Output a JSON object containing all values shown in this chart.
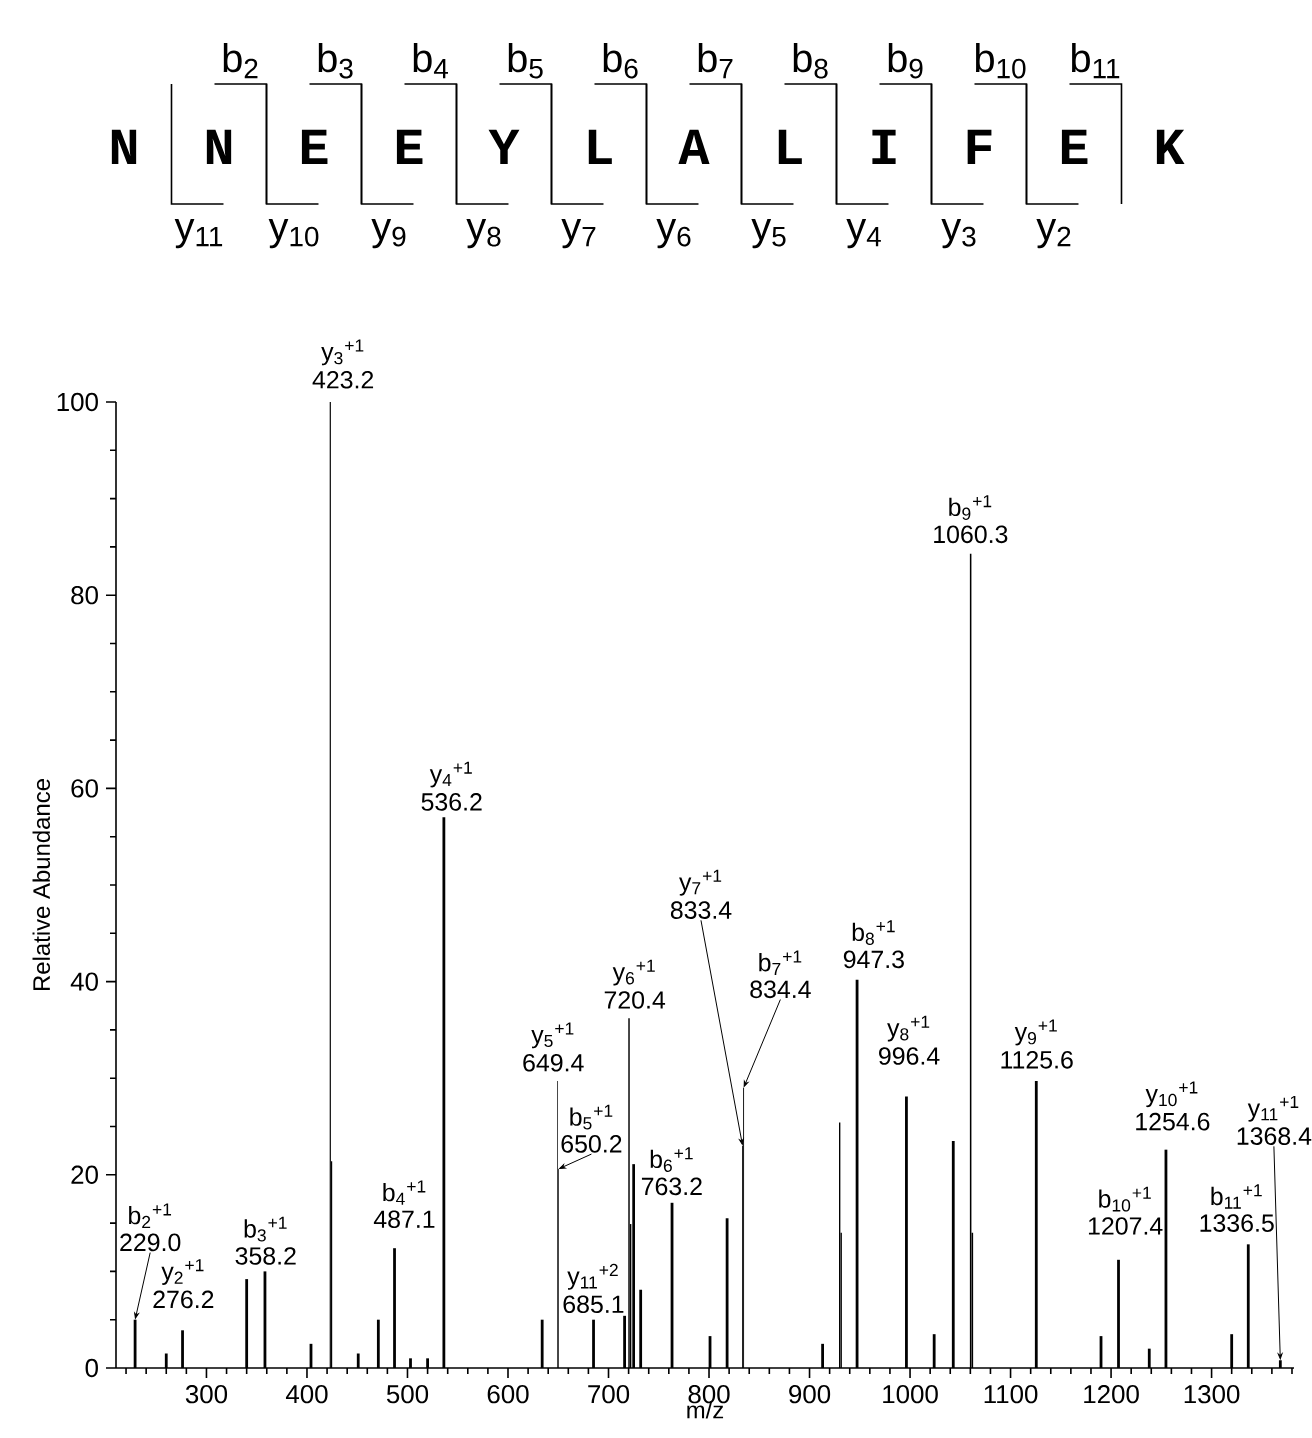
{
  "chart_data": {
    "type": "bar",
    "xlabel": "m/z",
    "ylabel": "Relative Abundance",
    "x": [
      229.0,
      260,
      276.2,
      340,
      358.2,
      404,
      423.2,
      424.5,
      451,
      471,
      487.1,
      503,
      520,
      536.2,
      634,
      649.4,
      650.2,
      685.1,
      716,
      720.4,
      722,
      725,
      732,
      763.2,
      801,
      818,
      833.4,
      834.4,
      913,
      930,
      931.5,
      947.3,
      996.4,
      1024,
      1043,
      1060.3,
      1062,
      1125.6,
      1190,
      1207.4,
      1238,
      1254.6,
      1320,
      1336.5,
      1368.4
    ],
    "values": [
      5.0,
      1.5,
      3.9,
      9.2,
      10.0,
      2.5,
      100,
      21.4,
      1.5,
      5.0,
      12.4,
      1.0,
      1.0,
      57,
      5.0,
      29.7,
      20.6,
      5.0,
      5.4,
      36.2,
      14.9,
      21.1,
      8.1,
      17.1,
      3.3,
      15.5,
      23,
      29,
      2.5,
      25.4,
      14,
      40.2,
      28.1,
      3.5,
      23.5,
      84.3,
      14,
      29.7,
      3.3,
      11.2,
      2,
      22.6,
      3.5,
      12.8,
      0.8
    ],
    "color": "#000000",
    "xlim": [
      210,
      1382
    ],
    "ylim": [
      0,
      100
    ],
    "xticks": [
      {
        "value": 220,
        "label": null
      },
      {
        "value": 240,
        "label": null
      },
      {
        "value": 260,
        "label": null
      },
      {
        "value": 280,
        "label": null
      },
      300,
      {
        "value": 320,
        "label": null
      },
      {
        "value": 340,
        "label": null
      },
      {
        "value": 360,
        "label": null
      },
      {
        "value": 380,
        "label": null
      },
      400,
      {
        "value": 420,
        "label": null
      },
      {
        "value": 440,
        "label": null
      },
      {
        "value": 460,
        "label": null
      },
      {
        "value": 480,
        "label": null
      },
      500,
      {
        "value": 520,
        "label": null
      },
      {
        "value": 540,
        "label": null
      },
      {
        "value": 560,
        "label": null
      },
      {
        "value": 580,
        "label": null
      },
      600,
      {
        "value": 620,
        "label": null
      },
      {
        "value": 640,
        "label": null
      },
      {
        "value": 660,
        "label": null
      },
      {
        "value": 680,
        "label": null
      },
      700,
      {
        "value": 720,
        "label": null
      },
      {
        "value": 740,
        "label": null
      },
      {
        "value": 760,
        "label": null
      },
      {
        "value": 780,
        "label": null
      },
      800,
      {
        "value": 820,
        "label": null
      },
      {
        "value": 840,
        "label": null
      },
      {
        "value": 860,
        "label": null
      },
      {
        "value": 880,
        "label": null
      },
      900,
      {
        "value": 920,
        "label": null
      },
      {
        "value": 940,
        "label": null
      },
      {
        "value": 960,
        "label": null
      },
      {
        "value": 980,
        "label": null
      },
      1000,
      {
        "value": 1020,
        "label": null
      },
      {
        "value": 1040,
        "label": null
      },
      {
        "value": 1060,
        "label": null
      },
      {
        "value": 1080,
        "label": null
      },
      1100,
      {
        "value": 1120,
        "label": null
      },
      {
        "value": 1140,
        "label": null
      },
      {
        "value": 1160,
        "label": null
      },
      {
        "value": 1180,
        "label": null
      },
      1200,
      {
        "value": 1220,
        "label": null
      },
      {
        "value": 1240,
        "label": null
      },
      {
        "value": 1260,
        "label": null
      },
      {
        "value": 1280,
        "label": null
      },
      1300,
      {
        "value": 1320,
        "label": null
      },
      {
        "value": 1340,
        "label": null
      },
      {
        "value": 1360,
        "label": null
      },
      {
        "value": 1380,
        "label": null
      }
    ],
    "yticks": [
      0,
      {
        "value": 5,
        "label": null
      },
      {
        "value": 10,
        "label": null
      },
      {
        "value": 15,
        "label": null
      },
      20,
      {
        "value": 25,
        "label": null
      },
      {
        "value": 30,
        "label": null
      },
      {
        "value": 35,
        "label": null
      },
      40,
      {
        "value": 45,
        "label": null
      },
      {
        "value": 50,
        "label": null
      },
      {
        "value": 55,
        "label": null
      },
      60,
      {
        "value": 65,
        "label": null
      },
      {
        "value": 70,
        "label": null
      },
      {
        "value": 75,
        "label": null
      },
      80,
      {
        "value": 85,
        "label": null
      },
      {
        "value": 90,
        "label": null
      },
      {
        "value": 95,
        "label": null
      },
      100
    ],
    "annotations": [
      "N",
      "N",
      "E",
      "E",
      "Y",
      "L",
      "A",
      "L",
      "I",
      "F",
      "E",
      "K",
      "b$_{2}$",
      "b$_{3}$",
      "b$_{4}$",
      "b$_{5}$",
      "b$_{6}$",
      "b$_{7}$",
      "b$_{8}$",
      "b$_{9}$",
      "b$_{10}$",
      "b$_{11}$",
      "y$_{11}$",
      "y$_{10}$",
      "y$_{9}$",
      "y$_{8}$",
      "y$_{7}$",
      "y$_{6}$",
      "y$_{5}$",
      "y$_{4}$",
      "y$_{3}$",
      "y$_{2}$",
      {
        "text": "b$_{2}$$^{+1}$",
        "x": 229.0,
        "y": 5.0
      },
      {
        "text": "229.0",
        "x": 229.0,
        "y": 5.0
      },
      {
        "text": "y$_{2}$$^{+1}$",
        "x": 276.2,
        "y": 3.9
      },
      {
        "text": "276.2",
        "x": 276.2,
        "y": 3.9
      },
      {
        "text": "b$_{3}$$^{+1}$",
        "x": 358.2,
        "y": 10.0
      },
      {
        "text": "358.2",
        "x": 358.2,
        "y": 10.0
      },
      {
        "text": "y$_{3}$$^{+1}$",
        "x": 423.2,
        "y": 100
      },
      {
        "text": "423.2",
        "x": 423.2,
        "y": 100
      },
      {
        "text": "b$_{4}$$^{+1}$",
        "x": 487.1,
        "y": 12.4
      },
      {
        "text": "487.1",
        "x": 487.1,
        "y": 12.4
      },
      {
        "text": "y$_{4}$$^{+1}$",
        "x": 536.2,
        "y": 57
      },
      {
        "text": "536.2",
        "x": 536.2,
        "y": 57
      },
      {
        "text": "y$_{5}$$^{+1}$",
        "x": 649.4,
        "y": 29.7
      },
      {
        "text": "649.4",
        "x": 649.4,
        "y": 29.7
      },
      {
        "text": "b$_{5}$$^{+1}$",
        "x": 650.2,
        "y": 20.6
      },
      {
        "text": "650.2",
        "x": 650.2,
        "y": 20.6
      },
      {
        "text": "y$_{11}$$^{+2}$",
        "x": 685.1,
        "y": 5.0
      },
      {
        "text": "685.1",
        "x": 685.1,
        "y": 5.0
      },
      {
        "text": "y$_{6}$$^{+1}$",
        "x": 720.4,
        "y": 36.2
      },
      {
        "text": "720.4",
        "x": 720.4,
        "y": 36.2
      },
      {
        "text": "b$_{6}$$^{+1}$",
        "x": 763.2,
        "y": 17.1
      },
      {
        "text": "763.2",
        "x": 763.2,
        "y": 17.1
      },
      {
        "text": "y$_{7}$$^{+1}$",
        "x": 833.4,
        "y": 23
      },
      {
        "text": "833.4",
        "x": 833.4,
        "y": 23
      },
      {
        "text": "b$_{7}$$^{+1}$",
        "x": 834.4,
        "y": 29
      },
      {
        "text": "834.4",
        "x": 834.4,
        "y": 29
      },
      {
        "text": "b$_{8}$$^{+1}$",
        "x": 947.3,
        "y": 40.2
      },
      {
        "text": "947.3",
        "x": 947.3,
        "y": 40.2
      },
      {
        "text": "y$_{8}$$^{+1}$",
        "x": 996.4,
        "y": 28.1
      },
      {
        "text": "996.4",
        "x": 996.4,
        "y": 28.1
      },
      {
        "text": "b$_{9}$$^{+1}$",
        "x": 1060.3,
        "y": 84.3
      },
      {
        "text": "1060.3",
        "x": 1060.3,
        "y": 84.3
      },
      {
        "text": "y$_{9}$$^{+1}$",
        "x": 1125.6,
        "y": 29.7
      },
      {
        "text": "1125.6",
        "x": 1125.6,
        "y": 29.7
      },
      {
        "text": "b$_{10}$$^{+1}$",
        "x": 1207.4,
        "y": 11.2
      },
      {
        "text": "1207.4",
        "x": 1207.4,
        "y": 11.2
      },
      {
        "text": "y$_{10}$$^{+1}$",
        "x": 1254.6,
        "y": 22.6
      },
      {
        "text": "1254.6",
        "x": 1254.6,
        "y": 22.6
      },
      {
        "text": "b$_{11}$$^{+1}$",
        "x": 1336.5,
        "y": 12.8
      },
      {
        "text": "1336.5",
        "x": 1336.5,
        "y": 12.8
      },
      {
        "text": "y$_{11}$$^{+1}$",
        "x": 1368.4,
        "y": 0.8
      },
      {
        "text": "1368.4",
        "x": 1368.4,
        "y": 0.8
      }
    ]
  }
}
